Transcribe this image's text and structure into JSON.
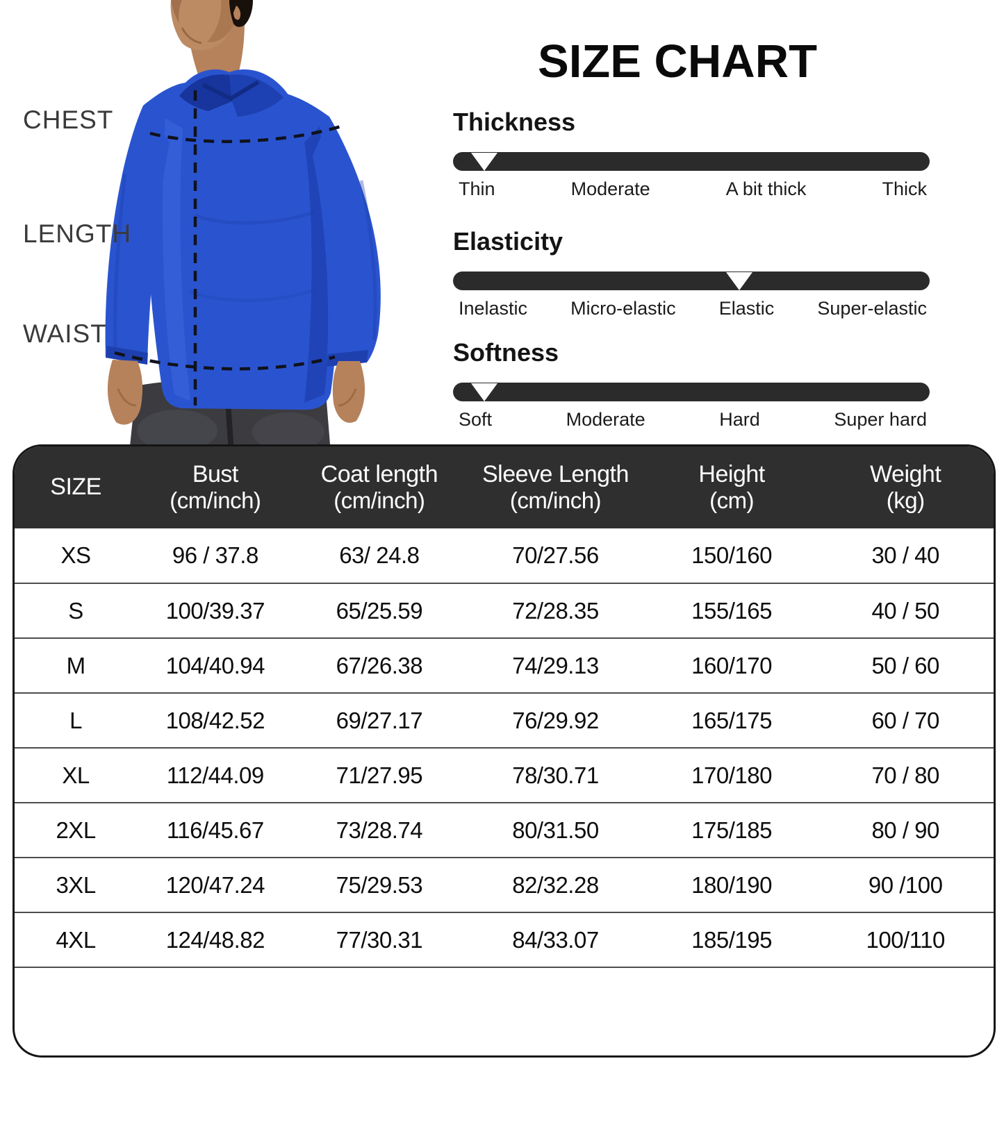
{
  "title": "SIZE CHART",
  "diagram": {
    "chest_label": "CHEST",
    "length_label": "LENGTH",
    "waist_label": "WAIST"
  },
  "sliders": [
    {
      "name": "Thickness",
      "position_pct": 6.5,
      "labels": [
        "Thin",
        "Moderate",
        "A bit thick",
        "Thick"
      ]
    },
    {
      "name": "Elasticity",
      "position_pct": 60,
      "labels": [
        "Inelastic",
        "Micro-elastic",
        "Elastic",
        "Super-elastic"
      ]
    },
    {
      "name": "Softness",
      "position_pct": 6.5,
      "labels": [
        "Soft",
        "Moderate",
        "Hard",
        "Super hard"
      ]
    }
  ],
  "table": {
    "headers": [
      {
        "line1": "SIZE",
        "line2": ""
      },
      {
        "line1": "Bust",
        "line2": "(cm/inch)"
      },
      {
        "line1": "Coat length",
        "line2": "(cm/inch)"
      },
      {
        "line1": "Sleeve Length",
        "line2": "(cm/inch)"
      },
      {
        "line1": "Height",
        "line2": "(cm)"
      },
      {
        "line1": "Weight",
        "line2": "(kg)"
      }
    ],
    "rows": [
      [
        "XS",
        "96 / 37.8",
        "63/ 24.8",
        "70/27.56",
        "150/160",
        "30 / 40"
      ],
      [
        "S",
        "100/39.37",
        "65/25.59",
        "72/28.35",
        "155/165",
        "40 / 50"
      ],
      [
        "M",
        "104/40.94",
        "67/26.38",
        "74/29.13",
        "160/170",
        "50 / 60"
      ],
      [
        "L",
        "108/42.52",
        "69/27.17",
        "76/29.92",
        "165/175",
        "60 / 70"
      ],
      [
        "XL",
        "112/44.09",
        "71/27.95",
        "78/30.71",
        "170/180",
        "70 / 80"
      ],
      [
        "2XL",
        "116/45.67",
        "73/28.74",
        "80/31.50",
        "175/185",
        "80 / 90"
      ],
      [
        "3XL",
        "120/47.24",
        "75/29.53",
        "82/32.28",
        "180/190",
        "90 /100"
      ],
      [
        "4XL",
        "124/48.82",
        "77/30.31",
        "84/33.07",
        "185/195",
        "100/110"
      ]
    ]
  },
  "colors": {
    "shirt_blue": "#2a54cf",
    "slider_bar": "#2b2b2b",
    "table_header_bg": "#2f2f2f",
    "row_divider": "#4d4d4d"
  }
}
